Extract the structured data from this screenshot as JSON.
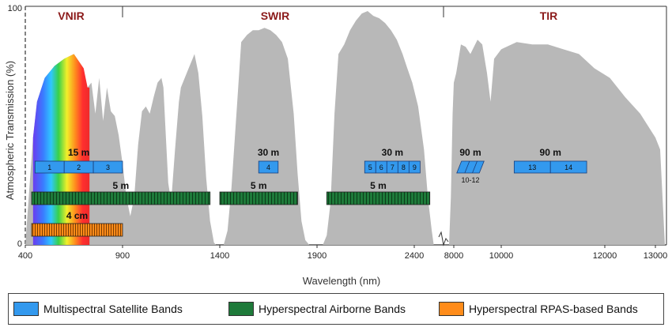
{
  "chart_data": {
    "type": "area",
    "title": "",
    "xlabel": "Wavelength (nm)",
    "ylabel": "Atmospheric Transmission (%)",
    "ylim": [
      0,
      100
    ],
    "y_ticks": [
      "0",
      "100"
    ],
    "x_ticks_left": [
      "400",
      "900",
      "1400",
      "1900",
      "2400"
    ],
    "x_ticks_right": [
      "8000",
      "10000",
      "12000",
      "13000"
    ],
    "x_ticks_right_values": [
      8000,
      10000,
      12000,
      13000
    ],
    "regions": [
      "VNIR",
      "SWIR",
      "TIR"
    ],
    "transmission_left": [
      [
        400,
        0
      ],
      [
        440,
        45
      ],
      [
        460,
        60
      ],
      [
        500,
        70
      ],
      [
        550,
        75
      ],
      [
        600,
        78
      ],
      [
        650,
        80
      ],
      [
        700,
        74
      ],
      [
        720,
        66
      ],
      [
        740,
        68
      ],
      [
        760,
        55
      ],
      [
        780,
        70
      ],
      [
        800,
        52
      ],
      [
        820,
        66
      ],
      [
        840,
        56
      ],
      [
        860,
        54
      ],
      [
        880,
        46
      ],
      [
        900,
        34
      ],
      [
        920,
        20
      ],
      [
        940,
        12
      ],
      [
        960,
        20
      ],
      [
        980,
        42
      ],
      [
        1000,
        56
      ],
      [
        1020,
        58
      ],
      [
        1040,
        55
      ],
      [
        1060,
        62
      ],
      [
        1080,
        68
      ],
      [
        1100,
        70
      ],
      [
        1110,
        66
      ],
      [
        1120,
        50
      ],
      [
        1135,
        26
      ],
      [
        1150,
        18
      ],
      [
        1170,
        40
      ],
      [
        1190,
        60
      ],
      [
        1200,
        66
      ],
      [
        1220,
        70
      ],
      [
        1240,
        74
      ],
      [
        1260,
        78
      ],
      [
        1270,
        80
      ],
      [
        1290,
        72
      ],
      [
        1310,
        54
      ],
      [
        1330,
        28
      ],
      [
        1350,
        10
      ],
      [
        1370,
        1
      ],
      [
        1380,
        0
      ],
      [
        1420,
        0
      ],
      [
        1440,
        6
      ],
      [
        1460,
        24
      ],
      [
        1490,
        60
      ],
      [
        1510,
        85
      ],
      [
        1540,
        88
      ],
      [
        1570,
        90
      ],
      [
        1600,
        90
      ],
      [
        1630,
        91
      ],
      [
        1660,
        90
      ],
      [
        1690,
        88
      ],
      [
        1720,
        85
      ],
      [
        1750,
        78
      ],
      [
        1780,
        55
      ],
      [
        1800,
        30
      ],
      [
        1820,
        10
      ],
      [
        1840,
        2
      ],
      [
        1860,
        0
      ],
      [
        1930,
        0
      ],
      [
        1950,
        4
      ],
      [
        1970,
        18
      ],
      [
        1990,
        55
      ],
      [
        2010,
        80
      ],
      [
        2040,
        84
      ],
      [
        2070,
        90
      ],
      [
        2100,
        94
      ],
      [
        2130,
        97
      ],
      [
        2160,
        98
      ],
      [
        2190,
        96
      ],
      [
        2220,
        95
      ],
      [
        2250,
        93
      ],
      [
        2280,
        90
      ],
      [
        2310,
        86
      ],
      [
        2340,
        80
      ],
      [
        2360,
        75
      ],
      [
        2390,
        68
      ],
      [
        2420,
        58
      ],
      [
        2450,
        40
      ],
      [
        2470,
        20
      ],
      [
        2490,
        6
      ],
      [
        2500,
        0
      ]
    ],
    "transmission_right": [
      [
        7600,
        0
      ],
      [
        7750,
        20
      ],
      [
        7900,
        55
      ],
      [
        8000,
        68
      ],
      [
        8100,
        72
      ],
      [
        8300,
        84
      ],
      [
        8500,
        83
      ],
      [
        8700,
        80
      ],
      [
        9000,
        86
      ],
      [
        9200,
        84
      ],
      [
        9400,
        72
      ],
      [
        9550,
        60
      ],
      [
        9700,
        78
      ],
      [
        10000,
        82
      ],
      [
        10300,
        85
      ],
      [
        10600,
        84
      ],
      [
        10900,
        84
      ],
      [
        11200,
        82
      ],
      [
        11500,
        80
      ],
      [
        11800,
        74
      ],
      [
        12100,
        70
      ],
      [
        12400,
        62
      ],
      [
        12700,
        55
      ],
      [
        13000,
        45
      ],
      [
        13100,
        40
      ],
      [
        13200,
        0
      ]
    ],
    "band_groups": [
      {
        "name": "VNIR Multispectral",
        "label": "15 m",
        "type": "Multispectral",
        "range": [
          450,
          900
        ],
        "bands": [
          "1",
          "2",
          "3"
        ]
      },
      {
        "name": "SWIR Multispectral 4",
        "label": "30 m",
        "type": "Multispectral",
        "range": [
          1600,
          1700
        ],
        "bands": [
          "4"
        ]
      },
      {
        "name": "SWIR Multispectral 5-9",
        "label": "30 m",
        "type": "Multispectral",
        "range": [
          2145,
          2430
        ],
        "bands": [
          "5",
          "6",
          "7",
          "8",
          "9"
        ]
      },
      {
        "name": "TIR Multispectral 10-12",
        "label": "90 m",
        "type": "Multispectral",
        "range": [
          8125,
          9275
        ],
        "bands": [
          "10-12"
        ]
      },
      {
        "name": "TIR Multispectral 13-14",
        "label": "90 m",
        "type": "Multispectral",
        "range": [
          10250,
          11650
        ],
        "bands": [
          "13",
          "14"
        ]
      },
      {
        "name": "Hyperspectral VNIR",
        "label": "5 m",
        "type": "Hyperspectral",
        "range": [
          400,
          1350
        ]
      },
      {
        "name": "Hyperspectral SWIR1",
        "label": "5 m",
        "type": "Hyperspectral",
        "range": [
          1400,
          1800
        ]
      },
      {
        "name": "Hyperspectral SWIR2",
        "label": "5 m",
        "type": "Hyperspectral",
        "range": [
          1950,
          2480
        ]
      },
      {
        "name": "RPAS",
        "label": "4 cm",
        "type": "RPAS",
        "range": [
          400,
          900
        ]
      }
    ],
    "legend_position": "bottom"
  },
  "legend": [
    {
      "text": "Multispectral Satellite Bands",
      "color": "#3399ee"
    },
    {
      "text": "Hyperspectral Airborne Bands",
      "color": "#1e7a3a"
    },
    {
      "text": "Hyperspectral  RPAS-based Bands",
      "color": "#ff8c1a"
    }
  ],
  "colors": {
    "transmission": "#b8b8b8",
    "multispectral": "#3399ee",
    "hyperspectral": "#1e7a3a",
    "rpas": "#ff8c1a",
    "region": "#8b1a1a"
  }
}
